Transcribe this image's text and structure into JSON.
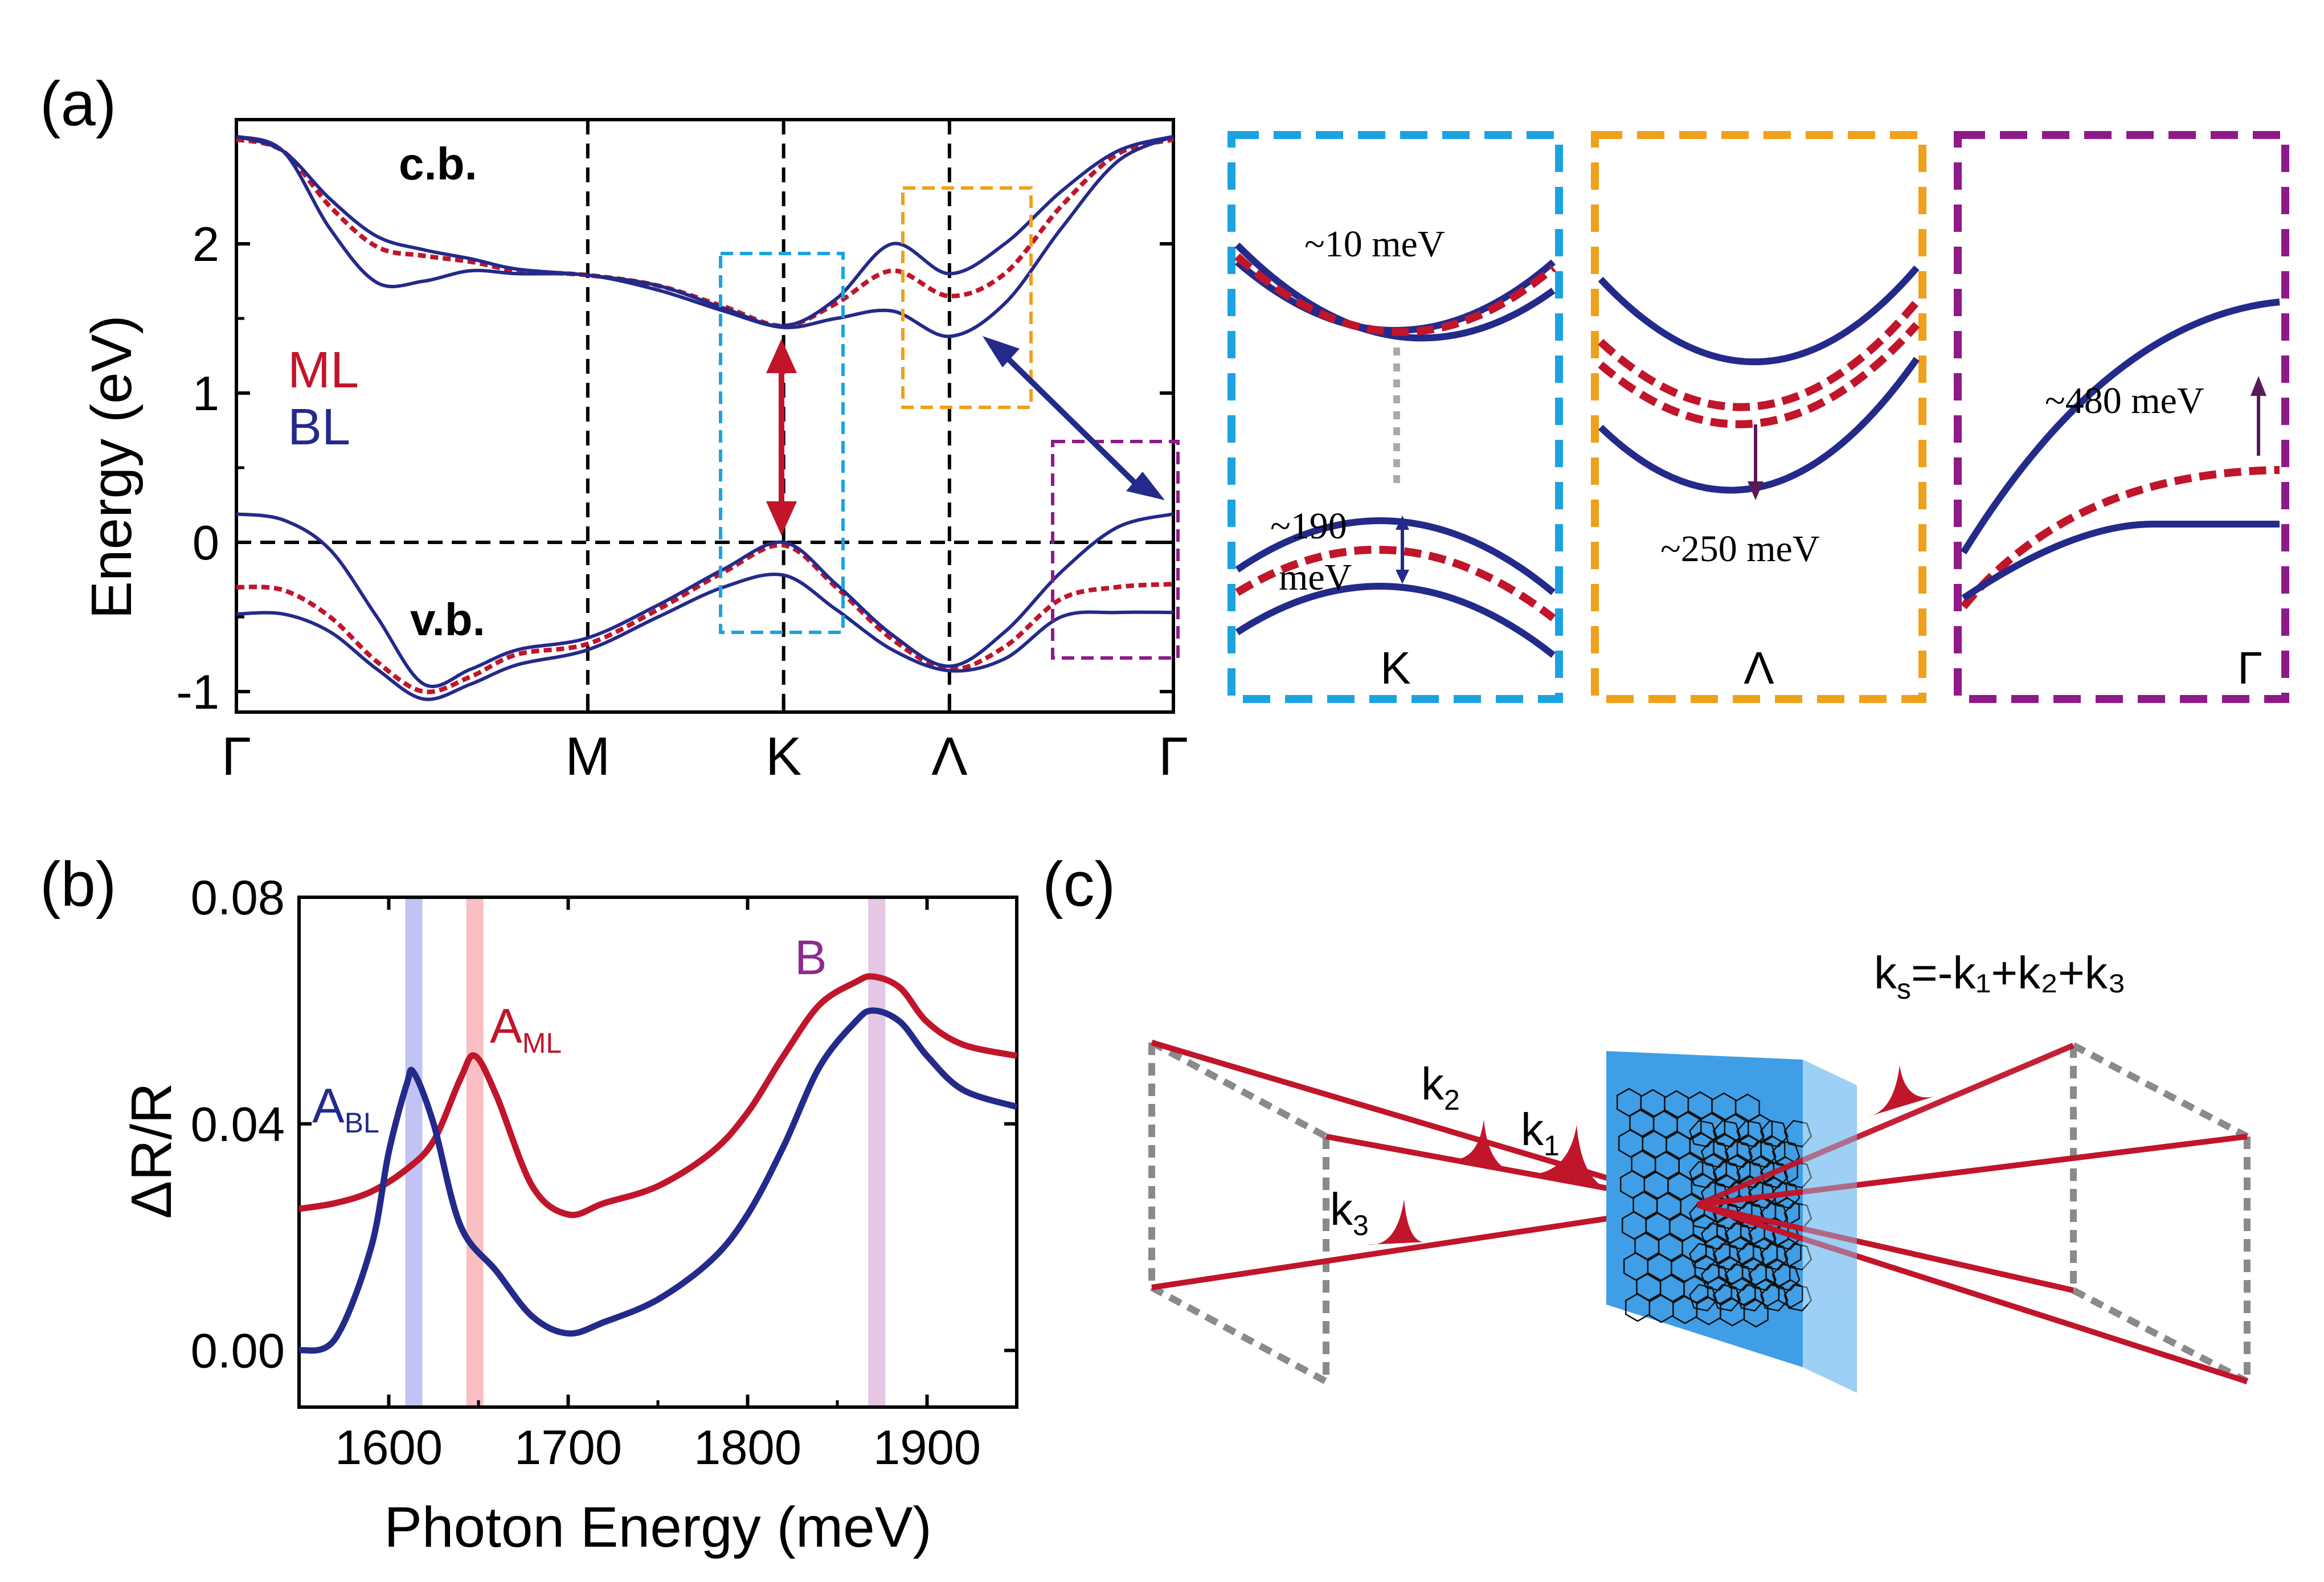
{
  "colors": {
    "ml": "#c0152a",
    "bl": "#232a8a",
    "k_box": "#1ba3e0",
    "lambda_box": "#f0a01a",
    "gamma_box": "#8e1a8a",
    "b_label": "#8e2a8e",
    "grey": "#8a8a8a",
    "crystal": "#3f9ee6",
    "crystal_side": "#8cc7f2"
  },
  "panel_a": {
    "label": "(a)",
    "ylabel": "Energy (eV)",
    "cb_label": "c.b.",
    "vb_label": "v.b.",
    "legend_ml": "ML",
    "legend_bl": "BL",
    "yticks": [
      "2",
      "1",
      "0",
      "-1"
    ],
    "kpoints": [
      "Γ",
      "M",
      "K",
      "Λ",
      "Γ"
    ]
  },
  "insets": {
    "k": {
      "label": "K",
      "ann_top": "~10 meV",
      "ann_190": "~190",
      "ann_mev": "meV"
    },
    "lambda": {
      "label": "Λ",
      "ann": "~250 meV"
    },
    "gamma": {
      "label": "Γ",
      "ann": "~480 meV"
    }
  },
  "panel_b": {
    "label": "(b)",
    "a_bl": "A",
    "a_bl_sub": "BL",
    "a_ml": "A",
    "a_ml_sub": "ML",
    "b": "B"
  },
  "panel_c": {
    "label": "(c)",
    "k1": "k",
    "k1_sub": "1",
    "k2": "k",
    "k2_sub": "2",
    "k3": "k",
    "k3_sub": "3",
    "ks": "k",
    "ks_sub": "s",
    "ks_eq": "=-k₁+k₂+k₃"
  },
  "chart_data": [
    {
      "type": "line",
      "title": "",
      "xlabel": "",
      "ylabel": "Energy (eV)",
      "ylim": [
        -1.2,
        2.8
      ],
      "x_ticks": [
        "Γ",
        "M",
        "K",
        "Λ",
        "Γ"
      ],
      "x_tick_positions": [
        0,
        0.375,
        0.584,
        0.761,
        1.0
      ],
      "x": [
        0,
        0.05,
        0.1,
        0.15,
        0.2,
        0.25,
        0.3,
        0.375,
        0.45,
        0.52,
        0.584,
        0.64,
        0.7,
        0.761,
        0.82,
        0.88,
        0.94,
        1.0
      ],
      "series": [
        {
          "name": "ML c.b.",
          "style": "dashed",
          "values": [
            2.7,
            2.62,
            2.25,
            1.98,
            1.92,
            1.88,
            1.82,
            1.79,
            1.72,
            1.58,
            1.45,
            1.6,
            1.82,
            1.65,
            1.8,
            2.25,
            2.6,
            2.7
          ]
        },
        {
          "name": "BL c.b. upper",
          "style": "solid",
          "values": [
            2.72,
            2.62,
            2.3,
            2.05,
            1.96,
            1.9,
            1.83,
            1.79,
            1.72,
            1.57,
            1.45,
            1.63,
            2.0,
            1.8,
            2.0,
            2.35,
            2.62,
            2.72
          ]
        },
        {
          "name": "BL c.b. lower",
          "style": "solid",
          "values": [
            2.72,
            2.62,
            2.1,
            1.74,
            1.75,
            1.82,
            1.8,
            1.79,
            1.69,
            1.55,
            1.44,
            1.5,
            1.55,
            1.38,
            1.6,
            2.1,
            2.55,
            2.72
          ]
        },
        {
          "name": "ML v.b.",
          "style": "dashed",
          "values": [
            -0.3,
            -0.32,
            -0.5,
            -0.8,
            -1.0,
            -0.9,
            -0.75,
            -0.68,
            -0.45,
            -0.2,
            -0.02,
            -0.3,
            -0.65,
            -0.85,
            -0.7,
            -0.38,
            -0.3,
            -0.28
          ]
        },
        {
          "name": "BL v.b. upper",
          "style": "solid",
          "values": [
            0.19,
            0.15,
            -0.05,
            -0.5,
            -0.95,
            -0.85,
            -0.72,
            -0.64,
            -0.42,
            -0.18,
            0.0,
            -0.28,
            -0.62,
            -0.83,
            -0.6,
            -0.2,
            0.1,
            0.19
          ]
        },
        {
          "name": "BL v.b. lower",
          "style": "solid",
          "values": [
            -0.48,
            -0.48,
            -0.6,
            -0.85,
            -1.05,
            -0.95,
            -0.82,
            -0.72,
            -0.5,
            -0.3,
            -0.22,
            -0.45,
            -0.72,
            -0.86,
            -0.78,
            -0.5,
            -0.47,
            -0.47
          ]
        }
      ]
    },
    {
      "type": "line",
      "title": "",
      "xlabel": "Photon Energy (meV)",
      "ylabel": "ΔR/R",
      "xlim": [
        1550,
        1950
      ],
      "ylim": [
        -0.01,
        0.08
      ],
      "x_ticks": [
        1600,
        1700,
        1800,
        1900
      ],
      "y_ticks": [
        "0.00",
        "0.04",
        "0.08"
      ],
      "highlight_bands": [
        {
          "name": "A_BL",
          "x": 1614
        },
        {
          "name": "A_ML",
          "x": 1648
        },
        {
          "name": "B",
          "x": 1872
        }
      ],
      "series": [
        {
          "name": "ML",
          "x": [
            1550,
            1570,
            1590,
            1610,
            1625,
            1640,
            1648,
            1660,
            1680,
            1700,
            1720,
            1750,
            1780,
            1800,
            1820,
            1840,
            1860,
            1870,
            1885,
            1900,
            1920,
            1950
          ],
          "values": [
            0.025,
            0.026,
            0.028,
            0.032,
            0.037,
            0.048,
            0.052,
            0.045,
            0.029,
            0.024,
            0.026,
            0.029,
            0.035,
            0.042,
            0.052,
            0.061,
            0.065,
            0.066,
            0.064,
            0.058,
            0.054,
            0.052
          ]
        },
        {
          "name": "BL",
          "x": [
            1550,
            1570,
            1590,
            1600,
            1610,
            1614,
            1625,
            1640,
            1660,
            1680,
            1700,
            1720,
            1750,
            1780,
            1800,
            1820,
            1840,
            1860,
            1870,
            1885,
            1900,
            1920,
            1950
          ],
          "values": [
            0.0,
            0.002,
            0.018,
            0.035,
            0.047,
            0.049,
            0.04,
            0.022,
            0.014,
            0.006,
            0.003,
            0.005,
            0.009,
            0.016,
            0.024,
            0.036,
            0.05,
            0.058,
            0.06,
            0.058,
            0.052,
            0.046,
            0.043
          ]
        }
      ]
    }
  ]
}
